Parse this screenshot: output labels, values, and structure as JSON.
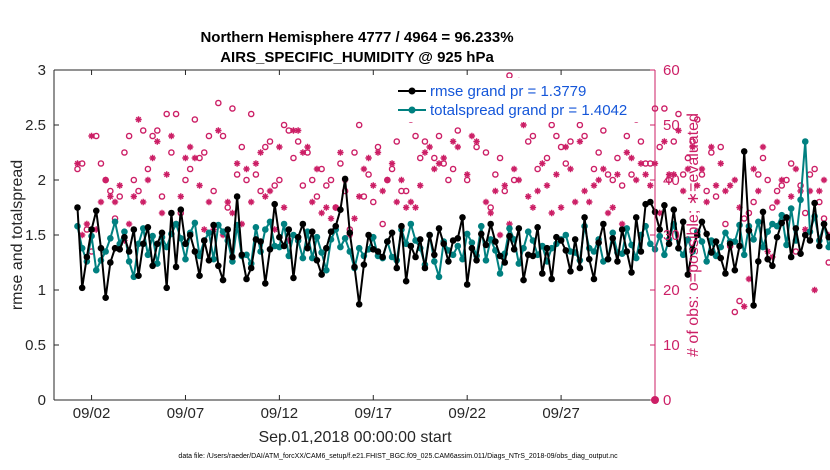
{
  "chart_data": {
    "type": "line",
    "title_line1": "Northern Hemisphere 4777 / 4964 = 96.233%",
    "title_line2": "AIRS_SPECIFIC_HUMIDITY @ 925 hPa",
    "xlabel": "Sep.01,2018 00:00:00 start",
    "ylabel_left": "rmse and totalspread",
    "ylabel_right": "# of obs: o=possible; ∗=evaluated",
    "footer": "data file: /Users/raeder/DAI/ATM_forcXX/CAM6_setup/f.e21.FHIST_BGC.f09_025.CAM6assim.011/Diags_NTrS_2018-09/obs_diag_output.nc",
    "xlim": [
      0.0,
      32.0
    ],
    "ylim_left": [
      0,
      3
    ],
    "ylim_right": [
      0,
      60
    ],
    "x_ticks": [
      {
        "value": 2,
        "label": "09/02"
      },
      {
        "value": 7,
        "label": "09/07"
      },
      {
        "value": 12,
        "label": "09/12"
      },
      {
        "value": 17,
        "label": "09/17"
      },
      {
        "value": 22,
        "label": "09/22"
      },
      {
        "value": 27,
        "label": "09/27"
      }
    ],
    "y_ticks_left": [
      "0",
      "0.5",
      "1",
      "1.5",
      "2",
      "2.5",
      "3"
    ],
    "y_ticks_right": [
      "0",
      "10",
      "20",
      "30",
      "40",
      "50",
      "60"
    ],
    "colors": {
      "rmse": "#000000",
      "spread": "#008080",
      "obs": "#cc1f66",
      "axis": "#262626",
      "grid": "#ffffff"
    },
    "legend": [
      {
        "name": "rmse grand pr = 1.3779",
        "series": "rmse"
      },
      {
        "name": "totalspread grand pr = 1.4042",
        "series": "spread"
      }
    ],
    "series": [
      {
        "name": "rmse",
        "x_start": 1.25,
        "x_step": 0.25,
        "values": [
          1.75,
          1.02,
          1.3,
          1.55,
          1.72,
          1.38,
          0.93,
          1.25,
          1.38,
          1.37,
          1.48,
          1.35,
          1.55,
          1.13,
          1.42,
          1.57,
          1.22,
          1.42,
          1.52,
          1.02,
          1.7,
          1.21,
          1.73,
          1.42,
          1.5,
          1.35,
          1.13,
          1.45,
          1.27,
          1.59,
          1.22,
          1.09,
          1.55,
          1.3,
          1.85,
          1.32,
          1.1,
          1.2,
          1.46,
          1.44,
          1.06,
          1.37,
          1.78,
          1.48,
          1.4,
          1.55,
          1.11,
          1.48,
          1.6,
          1.38,
          1.53,
          1.27,
          1.14,
          1.38,
          1.53,
          1.58,
          1.73,
          2.01,
          1.52,
          1.21,
          0.87,
          1.23,
          1.5,
          1.37,
          1.35,
          1.3,
          1.44,
          1.52,
          1.2,
          1.58,
          1.08,
          1.4,
          1.3,
          1.46,
          1.2,
          1.5,
          1.32,
          1.56,
          1.42,
          1.26,
          1.45,
          1.47,
          1.66,
          1.05,
          1.38,
          1.27,
          1.51,
          1.41,
          1.6,
          1.44,
          1.31,
          1.25,
          1.49,
          1.37,
          1.56,
          1.09,
          1.32,
          1.31,
          1.57,
          1.15,
          1.38,
          1.1,
          1.48,
          1.45,
          1.36,
          1.17,
          1.46,
          1.2,
          1.66,
          1.28,
          1.1,
          1.43,
          1.6,
          1.28,
          1.47,
          1.26,
          1.55,
          1.35,
          1.16,
          1.66,
          1.35,
          1.78,
          1.8,
          1.71,
          1.55,
          1.77,
          1.42,
          1.73,
          1.38,
          1.62,
          1.14,
          1.37,
          1.5,
          1.62,
          1.51,
          1.34,
          1.44,
          1.29,
          1.15,
          1.42,
          1.18,
          1.4,
          2.26,
          1.54,
          0.86,
          1.26,
          1.71,
          1.28,
          1.22,
          1.48,
          1.61,
          1.66,
          1.3,
          1.56,
          1.33,
          1.5,
          1.45,
          1.79,
          1.4,
          1.6,
          1.48,
          1.53,
          1.52
        ]
      },
      {
        "name": "totalspread",
        "x_start": 1.25,
        "x_step": 0.25,
        "values": [
          1.58,
          1.38,
          1.26,
          1.49,
          1.18,
          1.27,
          1.35,
          1.47,
          1.62,
          1.42,
          1.53,
          1.26,
          1.12,
          1.42,
          1.56,
          1.32,
          1.49,
          1.24,
          1.48,
          1.39,
          1.51,
          1.6,
          1.47,
          1.28,
          1.52,
          1.61,
          1.31,
          1.45,
          1.52,
          1.28,
          1.59,
          1.53,
          1.45,
          1.26,
          1.59,
          1.31,
          1.32,
          1.24,
          1.57,
          1.35,
          1.55,
          1.62,
          1.4,
          1.39,
          1.6,
          1.31,
          1.5,
          1.45,
          1.29,
          1.53,
          1.29,
          1.48,
          1.34,
          1.18,
          1.46,
          1.55,
          1.39,
          1.47,
          1.35,
          1.2,
          1.38,
          1.31,
          1.37,
          1.48,
          1.31,
          1.29,
          1.44,
          1.3,
          1.27,
          1.55,
          1.42,
          1.6,
          1.45,
          1.38,
          1.23,
          1.5,
          1.26,
          1.12,
          1.44,
          1.36,
          1.32,
          1.4,
          1.28,
          1.51,
          1.43,
          1.31,
          1.58,
          1.27,
          1.46,
          1.36,
          1.15,
          1.33,
          1.56,
          1.46,
          1.24,
          1.38,
          1.53,
          1.45,
          1.32,
          1.4,
          1.26,
          1.38,
          1.42,
          1.46,
          1.5,
          1.35,
          1.34,
          1.27,
          1.58,
          1.38,
          1.35,
          1.46,
          1.26,
          1.28,
          1.52,
          1.34,
          1.33,
          1.56,
          1.41,
          1.29,
          1.5,
          1.58,
          1.42,
          1.37,
          1.49,
          1.32,
          1.46,
          1.6,
          1.38,
          1.32,
          1.46,
          1.35,
          1.53,
          1.44,
          1.26,
          1.45,
          1.31,
          1.39,
          1.52,
          1.44,
          1.44,
          1.59,
          1.32,
          1.58,
          1.46,
          1.62,
          1.39,
          1.53,
          1.6,
          1.58,
          1.68,
          1.41,
          1.74,
          1.45,
          1.82,
          2.35,
          1.53,
          1.67,
          1.45,
          1.6,
          1.39,
          1.55,
          1.57,
          1.58
        ]
      },
      {
        "name": "possible obs (o)",
        "x_start": 1.25,
        "x_step": 0.25,
        "values": [
          42,
          43,
          31,
          27,
          48,
          43,
          40,
          38,
          33,
          37,
          45,
          48,
          40,
          38,
          49,
          42,
          48,
          49,
          37,
          52,
          45,
          52,
          34,
          40,
          42,
          51,
          44,
          45,
          48,
          38,
          54,
          48,
          35,
          53,
          41,
          46,
          40,
          52,
          41,
          38,
          46,
          47,
          39,
          40,
          50,
          49,
          44,
          47,
          39,
          45,
          40,
          37,
          42,
          39,
          40,
          35,
          43,
          38,
          31,
          45,
          50,
          37,
          41,
          36,
          46,
          32,
          40,
          42,
          47,
          38,
          38,
          51,
          48,
          44,
          47,
          53,
          44,
          48,
          43,
          40,
          42,
          49,
          55,
          40,
          53,
          46,
          56,
          45,
          35,
          41,
          44,
          38,
          59,
          40,
          58,
          52,
          47,
          48,
          42,
          54,
          44,
          50,
          48,
          46,
          43,
          47,
          53,
          50,
          48,
          52,
          42,
          45,
          49,
          41,
          40,
          44,
          39,
          48,
          41,
          51,
          47,
          43,
          43,
          53,
          46,
          53,
          40,
          47,
          52,
          41,
          44,
          47,
          51,
          41,
          38,
          45,
          37,
          46,
          32,
          28,
          16,
          18,
          33,
          34,
          36,
          41,
          44,
          40,
          35,
          38,
          39,
          40,
          43,
          27,
          39,
          34,
          41,
          42,
          36,
          33,
          25,
          41,
          41,
          44,
          44,
          38
        ]
      },
      {
        "name": "evaluated obs (*)",
        "x_start": 1.25,
        "x_step": 0.25,
        "values": [
          43,
          30,
          32,
          48,
          31,
          36,
          40,
          37,
          36,
          39,
          29,
          32,
          37,
          51,
          36,
          40,
          44,
          47,
          34,
          41,
          48,
          32,
          37,
          44,
          46,
          44,
          39,
          31,
          36,
          31,
          49,
          30,
          36,
          34,
          43,
          32,
          42,
          36,
          43,
          45,
          37,
          38,
          31,
          46,
          35,
          29,
          49,
          49,
          45,
          46,
          36,
          42,
          34,
          35,
          33,
          35,
          45,
          40,
          30,
          33,
          37,
          42,
          44,
          39,
          45,
          38,
          40,
          43,
          36,
          40,
          35,
          36,
          35,
          39,
          45,
          46,
          42,
          43,
          44,
          52,
          47,
          46,
          52,
          41,
          48,
          47,
          54,
          36,
          34,
          38,
          30,
          39,
          32,
          42,
          40,
          50,
          37,
          35,
          38,
          43,
          39,
          34,
          41,
          35,
          46,
          42,
          36,
          47,
          38,
          36,
          39,
          40,
          42,
          34,
          35,
          41,
          32,
          45,
          44,
          40,
          43,
          41,
          39,
          43,
          34,
          47,
          41,
          41,
          49,
          38,
          42,
          46,
          39,
          42,
          36,
          46,
          39,
          43,
          38,
          39,
          40,
          35,
          17,
          22,
          42,
          38,
          46,
          27,
          26,
          36,
          40,
          33,
          37,
          42,
          38,
          31,
          38,
          20,
          38,
          40,
          30,
          34,
          44,
          33,
          35,
          37
        ]
      }
    ]
  }
}
